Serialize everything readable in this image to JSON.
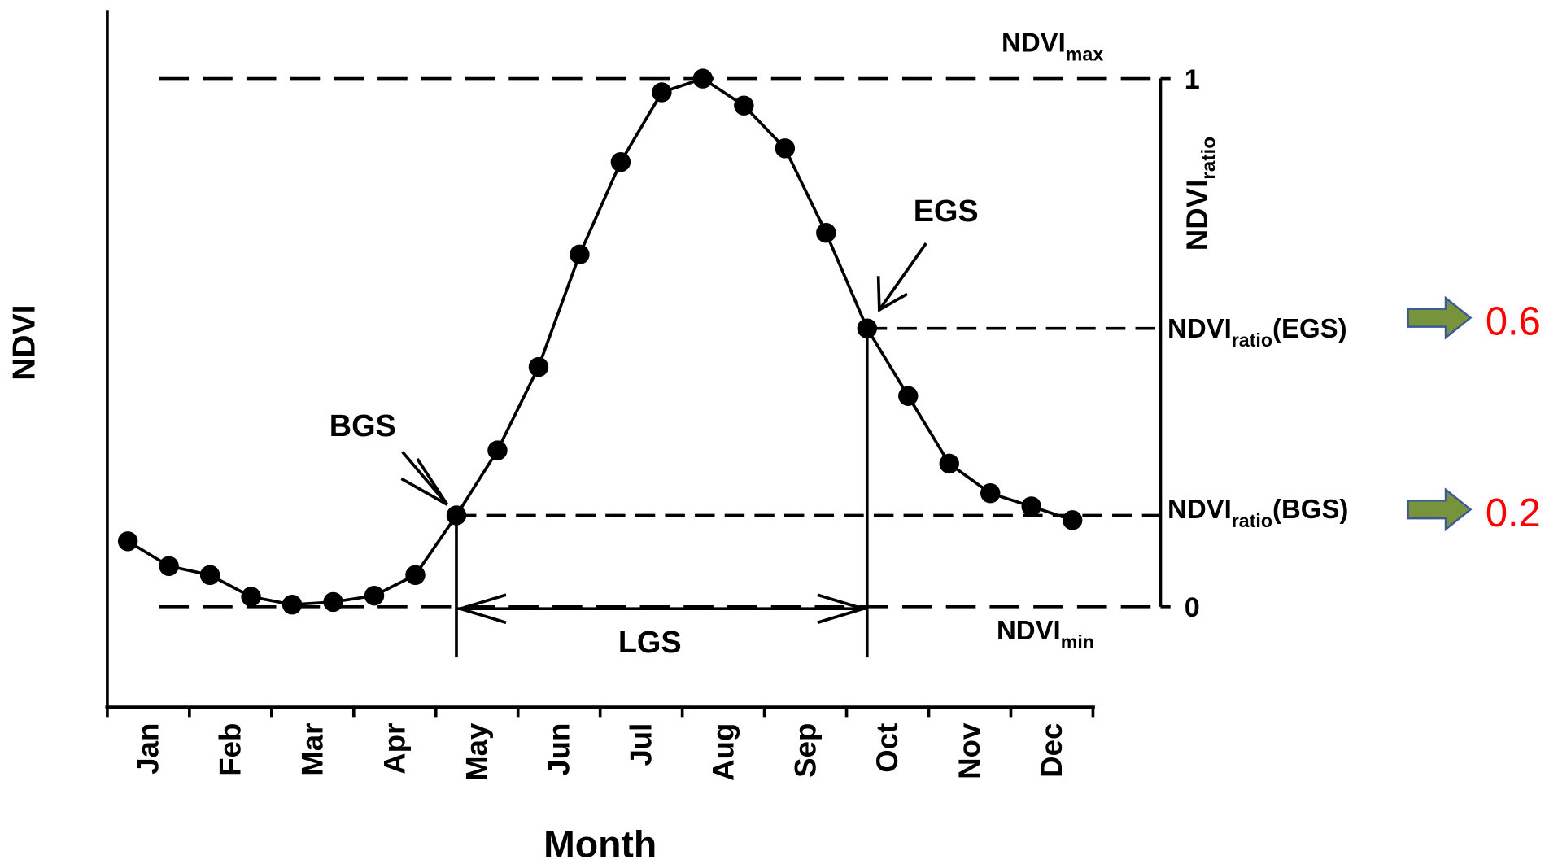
{
  "chart_data": {
    "type": "line",
    "x_label": "Month",
    "y_label": "NDVI",
    "categories": [
      "Jan",
      "Feb",
      "Mar",
      "Apr",
      "May",
      "Jun",
      "Jul",
      "Aug",
      "Sep",
      "Oct",
      "Nov",
      "Dec"
    ],
    "x": [
      0.25,
      0.75,
      1.25,
      1.75,
      2.25,
      2.75,
      3.25,
      3.75,
      4.25,
      4.75,
      5.25,
      5.75,
      6.25,
      6.75,
      7.25,
      7.75,
      8.25,
      8.75,
      9.25,
      9.75,
      10.25,
      10.75,
      11.25,
      11.75
    ],
    "values": [
      0.124,
      0.077,
      0.06,
      0.019,
      0.004,
      0.009,
      0.021,
      0.06,
      0.173,
      0.296,
      0.454,
      0.667,
      0.842,
      0.974,
      1.0,
      0.949,
      0.868,
      0.708,
      0.527,
      0.399,
      0.271,
      0.215,
      0.19,
      0.164
    ],
    "color": "#000000",
    "xlim": [
      0,
      12
    ],
    "ylim": [
      -0.19,
      1.13
    ],
    "yticks": [
      0,
      1
    ],
    "right_axis_label": {
      "main": "NDVI",
      "sub": "ratio"
    },
    "annotations": {
      "max": {
        "main": "NDVI",
        "sub": "max"
      },
      "min": {
        "main": "NDVI",
        "sub": "min"
      },
      "egs_ratio": {
        "main": "NDVI",
        "sub": "ratio",
        "suffix": "(EGS)"
      },
      "bgs_ratio": {
        "main": "NDVI",
        "sub": "ratio",
        "suffix": "(BGS)"
      },
      "bgs": "BGS",
      "egs": "EGS",
      "lgs": "LGS",
      "egs_value": "0.6",
      "bgs_value": "0.2"
    }
  }
}
